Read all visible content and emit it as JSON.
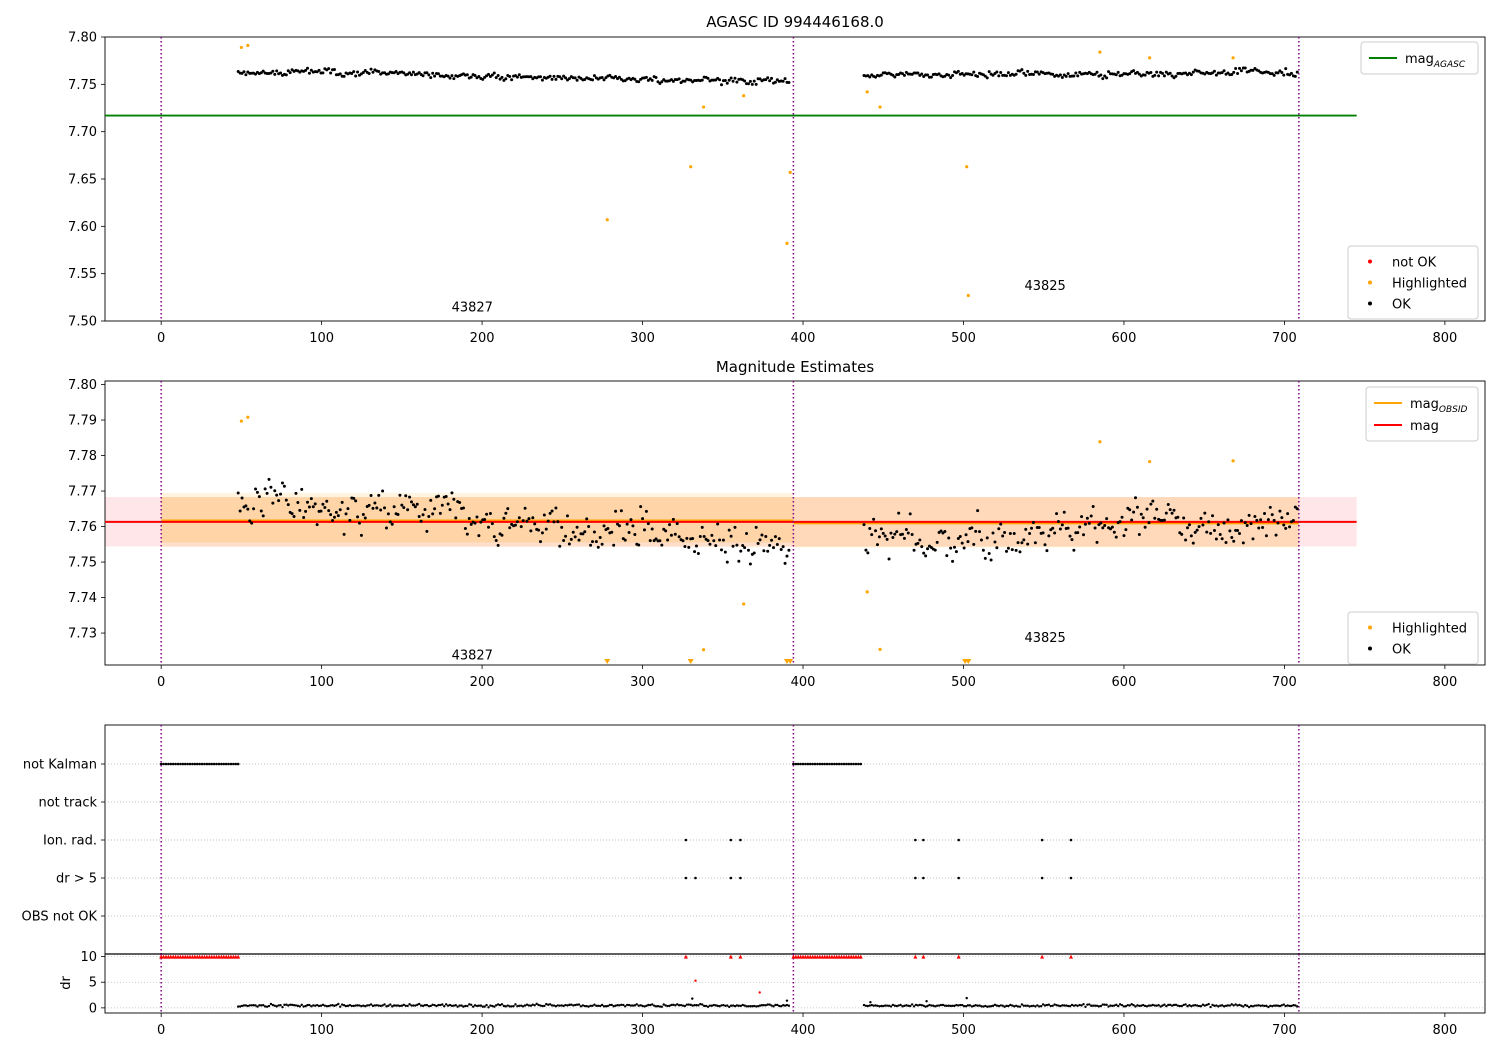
{
  "colors": {
    "ok": "#000000",
    "highlighted": "#ffa500",
    "not_ok": "#ff0000",
    "agasc_line": "#008000",
    "obsid_line": "#ffa500",
    "mag_line": "#ff0000",
    "obsid_boundary": "#800080"
  },
  "chart_data": [
    {
      "type": "scatter",
      "title": "AGASC ID 994446168.0",
      "xlim": [
        -35,
        825
      ],
      "ylim": [
        7.5,
        7.8
      ],
      "xticks": [
        0,
        100,
        200,
        300,
        400,
        500,
        600,
        700,
        800
      ],
      "yticks": [
        "7.50",
        "7.55",
        "7.60",
        "7.65",
        "7.70",
        "7.75",
        "7.80"
      ],
      "obsid_boundaries": [
        0,
        394,
        709
      ],
      "obsid_labels": [
        {
          "text": "43827",
          "x": 181,
          "y": 7.51
        },
        {
          "text": "43825",
          "x": 538,
          "y": 7.533
        }
      ],
      "lines": [
        {
          "name": "mag_{AGASC}",
          "y": 7.717,
          "x": [
            -35,
            745
          ],
          "color": "#008000"
        }
      ],
      "legend": {
        "position": "top-right",
        "entries": [
          {
            "label": "mag",
            "sub": "AGASC",
            "kind": "line",
            "color": "#008000"
          }
        ]
      },
      "legend2": {
        "position": "bottom-right",
        "entries": [
          {
            "label": "not OK",
            "kind": "dot",
            "color": "#ff0000"
          },
          {
            "label": "Highlighted",
            "kind": "dot",
            "color": "#ffa500"
          },
          {
            "label": "OK",
            "kind": "dot",
            "color": "#000000"
          }
        ]
      },
      "segments": [
        {
          "x_start": 48,
          "x_end": 392,
          "step": 1.2,
          "base": 7.764,
          "trend": -0.012,
          "noise": 0.004
        },
        {
          "x_start": 438,
          "x_end": 709,
          "step": 1.2,
          "base": 7.759,
          "trend": 0.004,
          "noise": 0.004
        }
      ],
      "highlighted_points": [
        [
          50,
          7.789
        ],
        [
          54,
          7.791
        ],
        [
          278,
          7.607
        ],
        [
          330,
          7.663
        ],
        [
          338,
          7.726
        ],
        [
          363,
          7.738
        ],
        [
          390,
          7.582
        ],
        [
          392,
          7.657
        ],
        [
          440,
          7.742
        ],
        [
          448,
          7.726
        ],
        [
          502,
          7.663
        ],
        [
          503,
          7.527
        ],
        [
          585,
          7.784
        ],
        [
          616,
          7.778
        ],
        [
          668,
          7.778
        ]
      ]
    },
    {
      "type": "scatter",
      "title": "Magnitude Estimates",
      "xlim": [
        -35,
        825
      ],
      "ylim": [
        7.721,
        7.801
      ],
      "xticks": [
        0,
        100,
        200,
        300,
        400,
        500,
        600,
        700,
        800
      ],
      "yticks": [
        "7.73",
        "7.74",
        "7.75",
        "7.76",
        "7.77",
        "7.78",
        "7.79",
        "7.80"
      ],
      "obsid_boundaries": [
        0,
        394,
        709
      ],
      "obsid_labels": [
        {
          "text": "43827",
          "x": 181,
          "y": 7.7225
        },
        {
          "text": "43825",
          "x": 538,
          "y": 7.7275
        }
      ],
      "bands": [
        {
          "x": [
            -35,
            745
          ],
          "y": [
            7.7544,
            7.7683
          ],
          "color": "#ffb6c1",
          "opacity": 0.35
        },
        {
          "x": [
            0,
            394
          ],
          "y": [
            7.7542,
            7.7695
          ],
          "color": "#ffa500",
          "opacity": 0.12
        },
        {
          "x": [
            0,
            394
          ],
          "y": [
            7.7555,
            7.7683
          ],
          "color": "#ffa500",
          "opacity": 0.18
        },
        {
          "x": [
            394,
            709
          ],
          "y": [
            7.7542,
            7.7683
          ],
          "color": "#ffa500",
          "opacity": 0.2
        }
      ],
      "lines": [
        {
          "name": "mag_{OBSID}",
          "y": 7.7617,
          "x": [
            0,
            394
          ],
          "color": "#ffa500"
        },
        {
          "name": "mag_{OBSID}",
          "y": 7.7609,
          "x": [
            394,
            709
          ],
          "color": "#ffa500"
        },
        {
          "name": "mag",
          "y": 7.7613,
          "x": [
            -35,
            745
          ],
          "color": "#ff0000"
        }
      ],
      "legend": {
        "position": "top-right",
        "entries": [
          {
            "label": "mag",
            "sub": "OBSID",
            "kind": "line",
            "color": "#ffa500"
          },
          {
            "label": "mag",
            "sub": "",
            "kind": "line",
            "color": "#ff0000"
          }
        ]
      },
      "legend2": {
        "position": "bottom-right",
        "entries": [
          {
            "label": "Highlighted",
            "kind": "dot",
            "color": "#ffa500"
          },
          {
            "label": "OK",
            "kind": "dot",
            "color": "#000000"
          }
        ]
      },
      "segments": [
        {
          "x_start": 48,
          "x_end": 392,
          "step": 1.2,
          "base": 7.768,
          "trend": -0.014,
          "noise": 0.007
        },
        {
          "x_start": 438,
          "x_end": 709,
          "step": 1.2,
          "base": 7.757,
          "trend": 0.006,
          "noise": 0.007
        }
      ],
      "highlighted_points": [
        [
          50,
          7.7897
        ],
        [
          54,
          7.7908
        ],
        [
          338,
          7.7253
        ],
        [
          363,
          7.7382
        ],
        [
          440,
          7.7416
        ],
        [
          448,
          7.7254
        ],
        [
          585,
          7.7839
        ],
        [
          616,
          7.7783
        ],
        [
          668,
          7.7785
        ]
      ],
      "offscale_markers": [
        278,
        330,
        390,
        392,
        501,
        503
      ]
    },
    {
      "type": "scatter",
      "xlim": [
        -35,
        825
      ],
      "xticks": [
        0,
        100,
        200,
        300,
        400,
        500,
        600,
        700,
        800
      ],
      "obsid_boundaries": [
        0,
        394,
        709
      ],
      "flag_rows": [
        "not Kalman",
        "not track",
        "Ion. rad.",
        "dr > 5",
        "OBS not OK"
      ],
      "flags": {
        "not Kalman": [
          [
            0,
            48,
            1.5
          ],
          [
            394,
            436,
            1.5
          ]
        ],
        "Ion. rad.": [
          327,
          355,
          361,
          470,
          475,
          497,
          549,
          567
        ],
        "dr > 5": [
          327,
          333,
          355,
          361,
          470,
          475,
          497,
          549,
          567
        ]
      }
    },
    {
      "type": "scatter",
      "ylabel": "dr",
      "xlim": [
        -35,
        825
      ],
      "ylim": [
        -1,
        10.5
      ],
      "yticks": [
        "0",
        "5",
        "10"
      ],
      "xticks": [
        0,
        100,
        200,
        300,
        400,
        500,
        600,
        700,
        800
      ],
      "obsid_boundaries": [
        0,
        394,
        709
      ],
      "clipped_markers": [
        [
          0,
          48,
          1.5
        ],
        [
          394,
          436,
          1.5
        ],
        327,
        355,
        361,
        470,
        475,
        497,
        549,
        567
      ],
      "segments": [
        {
          "x_start": 48,
          "x_end": 392,
          "step": 1.2,
          "base": 0.45,
          "noise": 0.25
        },
        {
          "x_start": 438,
          "x_end": 709,
          "step": 1.2,
          "base": 0.45,
          "noise": 0.25
        }
      ],
      "outliers": [
        [
          331,
          1.8
        ],
        [
          333,
          5.3
        ],
        [
          373,
          3.0
        ],
        [
          390,
          1.4
        ],
        [
          442,
          1.1
        ],
        [
          477,
          1.3
        ],
        [
          502,
          1.9
        ]
      ]
    }
  ]
}
